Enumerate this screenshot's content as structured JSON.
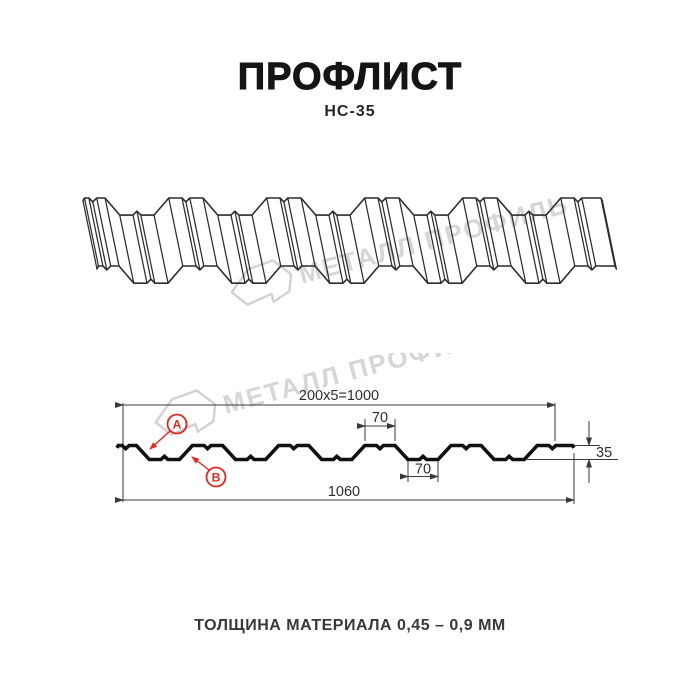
{
  "header": {
    "title": "ПРОФЛИСТ",
    "subtitle": "НС-35"
  },
  "watermark": {
    "text": "МЕТАЛЛ ПРОФИЛЬ",
    "color": "#d6d6d6"
  },
  "cross_section": {
    "dimensions": {
      "top_width": "200x5=1000",
      "crest_width": "70",
      "valley_width": "70",
      "height": "35",
      "total_width": "1060"
    },
    "labels": {
      "a": "А",
      "b": "В"
    },
    "colors": {
      "line": "#111111",
      "dimension": "#3a3a3a",
      "accent_red": "#e8251c"
    }
  },
  "footer": {
    "thickness_note": "ТОЛЩИНА МАТЕРИАЛА 0,45 – 0,9 ММ"
  }
}
